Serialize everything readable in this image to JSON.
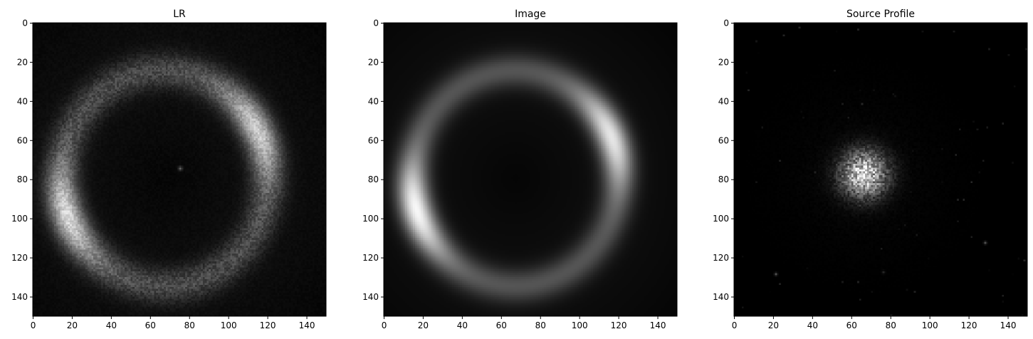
{
  "chart_data": [
    {
      "type": "heatmap",
      "title": "LR",
      "image_size": [
        150,
        150
      ],
      "colormap": "gray",
      "xlim": [
        0,
        150
      ],
      "ylim": [
        150,
        0
      ],
      "xticks": [
        0,
        20,
        40,
        60,
        80,
        100,
        120,
        140
      ],
      "yticks": [
        0,
        20,
        40,
        60,
        80,
        100,
        120,
        140
      ],
      "content": "noisy elliptical Einstein ring with brightest arcs at upper-right and lower-left, faint point near center",
      "ring": {
        "center_x": 67,
        "center_y": 79,
        "radius_x": 53,
        "radius_y": 55,
        "width": 10,
        "base_intensity": 0.24
      },
      "arcs": [
        {
          "x": 113,
          "y": 55,
          "peak_intensity": 0.75
        },
        {
          "x": 17,
          "y": 98,
          "peak_intensity": 0.8
        }
      ],
      "point_sources": [
        {
          "x": 75,
          "y": 74,
          "intensity": 0.35
        }
      ],
      "noise": 0.08
    },
    {
      "type": "heatmap",
      "title": "Image",
      "image_size": [
        150,
        150
      ],
      "colormap": "gray",
      "xlim": [
        0,
        150
      ],
      "ylim": [
        150,
        0
      ],
      "xticks": [
        0,
        20,
        40,
        60,
        80,
        100,
        120,
        140
      ],
      "yticks": [
        0,
        20,
        40,
        60,
        80,
        100,
        120,
        140
      ],
      "content": "smooth elliptical Einstein ring with brightest arcs at upper-right and lower-left",
      "ring": {
        "center_x": 67,
        "center_y": 79,
        "radius_x": 53,
        "radius_y": 55,
        "width": 10,
        "base_intensity": 0.28
      },
      "arcs": [
        {
          "x": 116,
          "y": 58,
          "peak_intensity": 0.85
        },
        {
          "x": 17,
          "y": 95,
          "peak_intensity": 0.92
        }
      ],
      "point_sources": [],
      "noise": 0
    },
    {
      "type": "heatmap",
      "title": "Source Profile",
      "image_size": [
        150,
        150
      ],
      "colormap": "gray",
      "xlim": [
        0,
        150
      ],
      "ylim": [
        150,
        0
      ],
      "xticks": [
        0,
        20,
        40,
        60,
        80,
        100,
        120,
        140
      ],
      "yticks": [
        0,
        20,
        40,
        60,
        80,
        100,
        120,
        140
      ],
      "content": "compact noisy source blob near center with faint scattered pixels",
      "blob": {
        "x": 66,
        "y": 77,
        "sigma": 8,
        "peak_intensity": 0.9
      },
      "point_sources": [
        {
          "x": 21,
          "y": 128,
          "intensity": 0.3
        },
        {
          "x": 128,
          "y": 112,
          "intensity": 0.3
        },
        {
          "x": 76,
          "y": 127,
          "intensity": 0.15
        }
      ],
      "noise": 0.05
    }
  ]
}
